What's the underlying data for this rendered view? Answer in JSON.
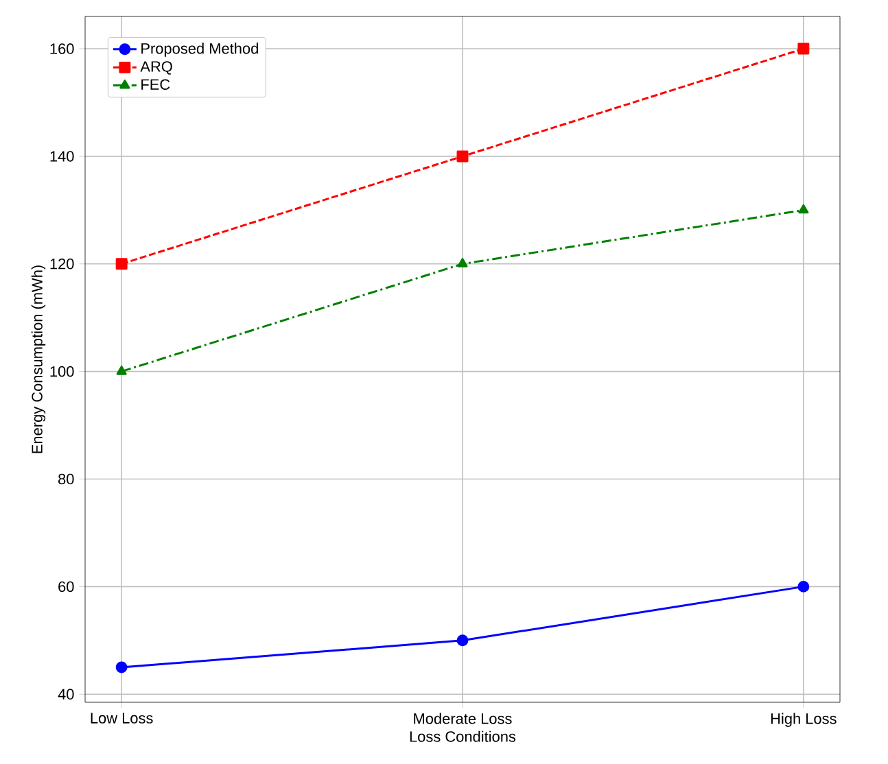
{
  "chart_data": {
    "type": "line",
    "xlabel": "Loss Conditions",
    "ylabel": "Energy Consumption (mWh)",
    "categories": [
      "Low Loss",
      "Moderate Loss",
      "High Loss"
    ],
    "series": [
      {
        "name": "Proposed Method",
        "color": "#0000ff",
        "values": [
          45,
          50,
          60
        ],
        "marker": "circle",
        "line_style": "solid"
      },
      {
        "name": "ARQ",
        "color": "#ff0000",
        "values": [
          120,
          140,
          160
        ],
        "marker": "square",
        "line_style": "dashed"
      },
      {
        "name": "FEC",
        "color": "#008000",
        "values": [
          100,
          120,
          130
        ],
        "marker": "triangle",
        "line_style": "dashdot"
      }
    ],
    "ylim": [
      38.5,
      166
    ],
    "yticks": [
      40,
      60,
      80,
      100,
      120,
      140,
      160
    ],
    "grid": true,
    "legend": "top left"
  }
}
